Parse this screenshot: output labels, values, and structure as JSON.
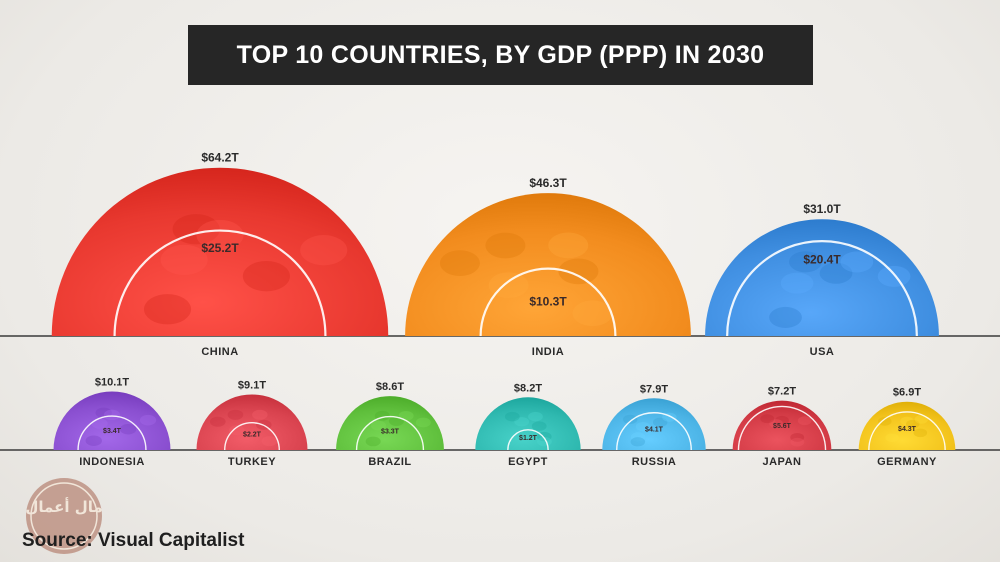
{
  "title": "TOP 10 COUNTRIES, BY GDP (PPP) IN 2030",
  "source": "Source: Visual Capitalist",
  "logo_text": "مال أعمال",
  "chart_data": [
    {
      "type": "semicircle-bubble",
      "title": "TOP 10 COUNTRIES, BY GDP (PPP) IN 2030",
      "row": "top",
      "categories": [
        "CHINA",
        "INDIA",
        "USA"
      ],
      "series": [
        {
          "name": "GDP (PPP) 2030",
          "values": [
            64.2,
            46.3,
            31.0
          ],
          "labels": [
            "$64.2T",
            "$46.3T",
            "$31.0T"
          ]
        },
        {
          "name": "Inner value",
          "values": [
            25.2,
            10.3,
            20.4
          ],
          "labels": [
            "$25.2T",
            "$10.3T",
            "$20.4T"
          ]
        }
      ],
      "colors": [
        "#e8382f",
        "#f28c1e",
        "#3f8ee0"
      ]
    },
    {
      "type": "semicircle-bubble",
      "row": "bottom",
      "categories": [
        "INDONESIA",
        "TURKEY",
        "BRAZIL",
        "EGYPT",
        "RUSSIA",
        "JAPAN",
        "GERMANY"
      ],
      "series": [
        {
          "name": "GDP (PPP) 2030",
          "values": [
            10.1,
            9.1,
            8.6,
            8.2,
            7.9,
            7.2,
            6.9
          ],
          "labels": [
            "$10.1T",
            "$9.1T",
            "$8.6T",
            "$8.2T",
            "$7.9T",
            "$7.2T",
            "$6.9T"
          ]
        },
        {
          "name": "Inner value",
          "values": [
            3.4,
            2.2,
            3.3,
            1.2,
            4.1,
            5.6,
            4.3
          ],
          "labels": [
            "$3.4T",
            "$2.2T",
            "$3.3T",
            "$1.2T",
            "$4.1T",
            "$5.6T",
            "$4.3T"
          ]
        }
      ],
      "colors": [
        "#8a4fd0",
        "#d9434f",
        "#5fbf3c",
        "#2fb9b0",
        "#4cb4e6",
        "#d23a45",
        "#f2c21b"
      ]
    }
  ]
}
